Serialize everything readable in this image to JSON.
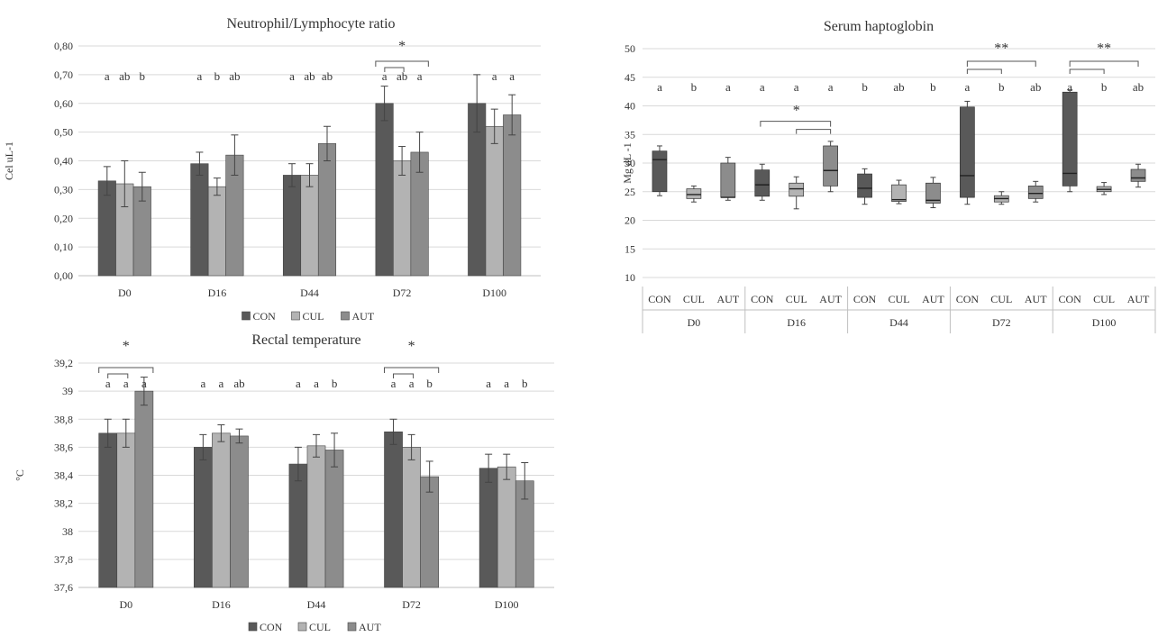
{
  "series_names": [
    "CON",
    "CUL",
    "AUT"
  ],
  "colors": {
    "CON": "#595959",
    "CUL": "#b3b3b3",
    "AUT": "#8c8c8c"
  },
  "chart_data": [
    {
      "id": "nlr",
      "type": "bar",
      "title": "Neutrophil/Lymphocyte ratio",
      "ylabel": "Cel uL-1",
      "categories": [
        "D0",
        "D16",
        "D44",
        "D72",
        "D100"
      ],
      "ylim": [
        0,
        0.8
      ],
      "yticks": [
        "0,00",
        "0,10",
        "0,20",
        "0,30",
        "0,40",
        "0,50",
        "0,60",
        "0,70",
        "0,80"
      ],
      "series": [
        {
          "name": "CON",
          "values": [
            0.33,
            0.39,
            0.35,
            0.6,
            0.6
          ],
          "errors": [
            0.05,
            0.04,
            0.04,
            0.06,
            0.1
          ]
        },
        {
          "name": "CUL",
          "values": [
            0.32,
            0.31,
            0.35,
            0.4,
            0.52
          ],
          "errors": [
            0.08,
            0.03,
            0.04,
            0.05,
            0.06
          ]
        },
        {
          "name": "AUT",
          "values": [
            0.31,
            0.42,
            0.46,
            0.43,
            0.56
          ],
          "errors": [
            0.05,
            0.07,
            0.06,
            0.07,
            0.07
          ]
        }
      ],
      "letters": [
        [
          "a",
          "ab",
          "b"
        ],
        [
          "a",
          "b",
          "ab"
        ],
        [
          "a",
          "ab",
          "ab"
        ],
        [
          "a",
          "ab",
          "a"
        ],
        [
          "",
          "a",
          "a"
        ]
      ],
      "significance": [
        {
          "category": "D72",
          "label": "*"
        }
      ],
      "legend": "bottom",
      "grid": true
    },
    {
      "id": "rt",
      "type": "bar",
      "title": "Rectal temperature",
      "ylabel": "°C",
      "categories": [
        "D0",
        "D16",
        "D44",
        "D72",
        "D100"
      ],
      "ylim": [
        37.6,
        39.2
      ],
      "yticks": [
        "37,6",
        "37,8",
        "38",
        "38,2",
        "38,4",
        "38,6",
        "38,8",
        "39",
        "39,2"
      ],
      "series": [
        {
          "name": "CON",
          "values": [
            38.7,
            38.6,
            38.48,
            38.71,
            38.45
          ],
          "errors": [
            0.1,
            0.09,
            0.12,
            0.09,
            0.1
          ]
        },
        {
          "name": "CUL",
          "values": [
            38.7,
            38.7,
            38.61,
            38.6,
            38.46
          ],
          "errors": [
            0.1,
            0.06,
            0.08,
            0.09,
            0.09
          ]
        },
        {
          "name": "AUT",
          "values": [
            39.0,
            38.68,
            38.58,
            38.39,
            38.36
          ],
          "errors": [
            0.1,
            0.05,
            0.12,
            0.11,
            0.13
          ]
        }
      ],
      "letters": [
        [
          "a",
          "a",
          "a"
        ],
        [
          "a",
          "a",
          "ab"
        ],
        [
          "a",
          "a",
          "b"
        ],
        [
          "a",
          "a",
          "b"
        ],
        [
          "a",
          "a",
          "b"
        ]
      ],
      "significance": [
        {
          "category": "D0",
          "label": "*"
        },
        {
          "category": "D72",
          "label": "*"
        }
      ],
      "legend": "bottom",
      "grid": true
    },
    {
      "id": "hp",
      "type": "box",
      "title": "Serum haptoglobin",
      "ylabel": "Mg dL -1",
      "groups": [
        "D0",
        "D16",
        "D44",
        "D72",
        "D100"
      ],
      "subcategories": [
        "CON",
        "CUL",
        "AUT"
      ],
      "ylim": [
        10,
        50
      ],
      "yticks": [
        "10",
        "15",
        "20",
        "25",
        "30",
        "35",
        "40",
        "45",
        "50"
      ],
      "boxes": [
        {
          "group": "D0",
          "name": "CON",
          "min": 24.3,
          "q1": 25.0,
          "median": 30.6,
          "q3": 32.1,
          "max": 33.0
        },
        {
          "group": "D0",
          "name": "CUL",
          "min": 23.2,
          "q1": 23.8,
          "median": 24.5,
          "q3": 25.5,
          "max": 26.0
        },
        {
          "group": "D0",
          "name": "AUT",
          "min": 23.5,
          "q1": 24.0,
          "median": 24.0,
          "q3": 30.0,
          "max": 31.0
        },
        {
          "group": "D16",
          "name": "CON",
          "min": 23.5,
          "q1": 24.2,
          "median": 26.2,
          "q3": 28.8,
          "max": 29.8
        },
        {
          "group": "D16",
          "name": "CUL",
          "min": 22.0,
          "q1": 24.2,
          "median": 25.5,
          "q3": 26.5,
          "max": 27.6
        },
        {
          "group": "D16",
          "name": "AUT",
          "min": 25.0,
          "q1": 26.0,
          "median": 28.7,
          "q3": 33.0,
          "max": 33.8
        },
        {
          "group": "D44",
          "name": "CON",
          "min": 22.8,
          "q1": 24.0,
          "median": 25.6,
          "q3": 28.1,
          "max": 29.0
        },
        {
          "group": "D44",
          "name": "CUL",
          "min": 22.9,
          "q1": 23.3,
          "median": 23.6,
          "q3": 26.2,
          "max": 27.0
        },
        {
          "group": "D44",
          "name": "AUT",
          "min": 22.2,
          "q1": 23.0,
          "median": 23.5,
          "q3": 26.5,
          "max": 27.5
        },
        {
          "group": "D72",
          "name": "CON",
          "min": 22.8,
          "q1": 24.0,
          "median": 27.8,
          "q3": 39.8,
          "max": 40.8
        },
        {
          "group": "D72",
          "name": "CUL",
          "min": 22.8,
          "q1": 23.2,
          "median": 23.8,
          "q3": 24.3,
          "max": 25.0
        },
        {
          "group": "D72",
          "name": "AUT",
          "min": 23.2,
          "q1": 23.8,
          "median": 24.7,
          "q3": 26.0,
          "max": 26.8
        },
        {
          "group": "D100",
          "name": "CON",
          "min": 25.0,
          "q1": 26.0,
          "median": 28.2,
          "q3": 42.4,
          "max": 42.8
        },
        {
          "group": "D100",
          "name": "CUL",
          "min": 24.5,
          "q1": 25.0,
          "median": 25.4,
          "q3": 25.9,
          "max": 26.6
        },
        {
          "group": "D100",
          "name": "AUT",
          "min": 25.8,
          "q1": 26.8,
          "median": 27.4,
          "q3": 28.9,
          "max": 29.8
        }
      ],
      "letters": [
        [
          "a",
          "b",
          "a"
        ],
        [
          "a",
          "a",
          "a"
        ],
        [
          "b",
          "ab",
          "b"
        ],
        [
          "a",
          "b",
          "ab"
        ],
        [
          "a",
          "b",
          "ab"
        ]
      ],
      "significance": [
        {
          "group": "D16",
          "label": "*"
        },
        {
          "group": "D72",
          "label": "**"
        },
        {
          "group": "D100",
          "label": "**"
        }
      ],
      "grid": true
    }
  ]
}
